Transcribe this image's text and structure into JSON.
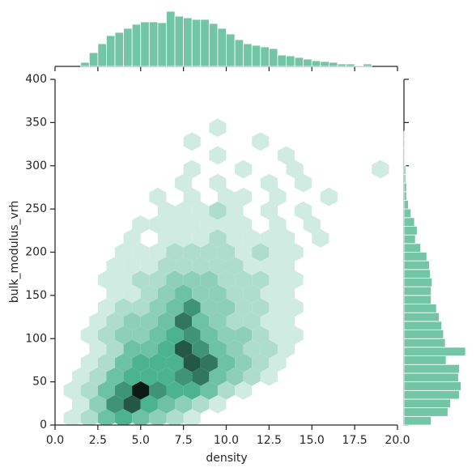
{
  "chart_data": {
    "type": "hexbin_joint",
    "x_label": "density",
    "y_label": "bulk_modulus_vrh",
    "xlim": [
      0,
      20
    ],
    "ylim": [
      0,
      400
    ],
    "xticks": [
      {
        "value": 0,
        "label": "0.0"
      },
      2.5,
      {
        "value": 5,
        "label": "5.0"
      },
      7.5,
      {
        "value": 10,
        "label": "10.0"
      },
      12.5,
      {
        "value": 15,
        "label": "15.0"
      },
      17.5,
      {
        "value": 20,
        "label": "20.0"
      }
    ],
    "yticks": [
      0,
      50,
      100,
      150,
      200,
      250,
      300,
      350,
      400
    ],
    "color": "#73c6a5",
    "cmap": [
      "#f1f9f5",
      "#4cb391",
      "#0a1a14"
    ],
    "hexbin": [
      {
        "y": 8,
        "x": [
          1,
          2,
          3,
          4,
          5,
          6,
          7,
          8
        ],
        "counts": [
          1,
          2,
          4,
          5,
          4,
          3,
          2,
          1
        ]
      },
      {
        "y": 24,
        "x": [
          1.5,
          2.5,
          3.5,
          4.5,
          5.5,
          6.5,
          7.5,
          8.5,
          9.5
        ],
        "counts": [
          1,
          3,
          6,
          8,
          5,
          4,
          3,
          2,
          1
        ]
      },
      {
        "y": 40,
        "x": [
          1,
          2,
          3,
          4,
          5,
          6,
          7,
          8,
          9,
          10,
          11
        ],
        "counts": [
          1,
          2,
          4,
          6,
          10,
          6,
          5,
          5,
          4,
          2,
          1
        ]
      },
      {
        "y": 56,
        "x": [
          1.5,
          2.5,
          3.5,
          4.5,
          5.5,
          6.5,
          7.5,
          8.5,
          9.5,
          10.5,
          11.5,
          12.5
        ],
        "counts": [
          1,
          2,
          4,
          5,
          5,
          5,
          6,
          7,
          4,
          3,
          2,
          1
        ]
      },
      {
        "y": 72,
        "x": [
          2,
          3,
          4,
          5,
          6,
          7,
          8,
          9,
          10,
          11,
          12,
          13
        ],
        "counts": [
          1,
          2,
          4,
          5,
          5,
          5,
          8,
          7,
          4,
          3,
          2,
          1
        ]
      },
      {
        "y": 88,
        "x": [
          2.5,
          3.5,
          4.5,
          5.5,
          6.5,
          7.5,
          8.5,
          9.5,
          10.5,
          11.5,
          12.5,
          13.5
        ],
        "counts": [
          1,
          2,
          4,
          4,
          5,
          8,
          6,
          4,
          3,
          2,
          2,
          1
        ]
      },
      {
        "y": 104,
        "x": [
          2,
          3,
          4,
          5,
          6,
          7,
          8,
          9,
          10,
          11,
          12,
          13,
          14
        ],
        "counts": [
          1,
          2,
          3,
          3,
          4,
          5,
          6,
          4,
          3,
          3,
          2,
          1,
          1
        ]
      },
      {
        "y": 120,
        "x": [
          2.5,
          3.5,
          4.5,
          5.5,
          6.5,
          7.5,
          8.5,
          9.5,
          10.5,
          11.5,
          12.5,
          13.5
        ],
        "counts": [
          1,
          2,
          3,
          3,
          4,
          7,
          4,
          3,
          2,
          2,
          1,
          1
        ]
      },
      {
        "y": 136,
        "x": [
          3,
          4,
          5,
          6,
          7,
          8,
          9,
          10,
          11,
          12,
          13,
          14
        ],
        "counts": [
          1,
          2,
          2,
          3,
          4,
          6,
          3,
          3,
          2,
          2,
          1,
          1
        ]
      },
      {
        "y": 152,
        "x": [
          3.5,
          4.5,
          5.5,
          6.5,
          7.5,
          8.5,
          9.5,
          10.5,
          11.5,
          12.5,
          13.5
        ],
        "counts": [
          1,
          1,
          2,
          3,
          4,
          3,
          3,
          2,
          2,
          1,
          1
        ]
      },
      {
        "y": 168,
        "x": [
          3,
          4,
          5,
          6,
          7,
          8,
          9,
          10,
          11,
          12,
          13,
          14
        ],
        "counts": [
          1,
          1,
          2,
          2,
          3,
          3,
          3,
          2,
          2,
          2,
          1,
          1
        ]
      },
      {
        "y": 184,
        "x": [
          3.5,
          4.5,
          5.5,
          6.5,
          7.5,
          8.5,
          9.5,
          10.5,
          11.5,
          12.5,
          13.5
        ],
        "counts": [
          1,
          1,
          1,
          2,
          2,
          2,
          2,
          2,
          1,
          1,
          1
        ]
      },
      {
        "y": 200,
        "x": [
          4,
          5,
          6,
          7,
          8,
          9,
          10,
          11,
          12,
          13,
          14
        ],
        "counts": [
          1,
          1,
          1,
          2,
          2,
          2,
          2,
          1,
          2,
          1,
          1
        ]
      },
      {
        "y": 216,
        "x": [
          4.5,
          6.5,
          7.5,
          8.5,
          9.5,
          10.5,
          11.5,
          12.5,
          13.5,
          15.5
        ],
        "counts": [
          1,
          1,
          1,
          1,
          2,
          1,
          1,
          1,
          1,
          1
        ]
      },
      {
        "y": 232,
        "x": [
          5,
          6,
          7,
          8,
          9,
          10,
          11,
          13,
          15
        ],
        "counts": [
          1,
          1,
          1,
          1,
          1,
          1,
          1,
          1,
          1
        ]
      },
      {
        "y": 248,
        "x": [
          6.5,
          7.5,
          8.5,
          9.5,
          10.5,
          12.5,
          14.5
        ],
        "counts": [
          1,
          1,
          1,
          2,
          1,
          1,
          1
        ]
      },
      {
        "y": 264,
        "x": [
          6,
          8,
          10,
          11,
          13,
          16
        ],
        "counts": [
          1,
          1,
          1,
          1,
          1,
          1
        ]
      },
      {
        "y": 280,
        "x": [
          7.5,
          9.5,
          12.5,
          14.5
        ],
        "counts": [
          1,
          1,
          1,
          1
        ]
      },
      {
        "y": 296,
        "x": [
          8,
          11,
          14,
          19
        ],
        "counts": [
          1,
          1,
          1,
          1
        ]
      },
      {
        "y": 312,
        "x": [
          9.5,
          13.5
        ],
        "counts": [
          1,
          1
        ]
      },
      {
        "y": 328,
        "x": [
          8,
          12
        ],
        "counts": [
          1,
          1
        ]
      },
      {
        "y": 344,
        "x": [
          9.5
        ],
        "counts": [
          1
        ]
      }
    ],
    "x_hist": {
      "bins": [
        1.5,
        2,
        2.5,
        3,
        3.5,
        4,
        4.5,
        5,
        5.5,
        6,
        6.5,
        7,
        7.5,
        8,
        8.5,
        9,
        9.5,
        10,
        10.5,
        11,
        11.5,
        12,
        12.5,
        13,
        13.5,
        14,
        14.5,
        15,
        15.5,
        16,
        16.5,
        17,
        17.5,
        18,
        18.5
      ],
      "counts": [
        5,
        17,
        28,
        38,
        42,
        47,
        52,
        55,
        55,
        54,
        68,
        62,
        60,
        58,
        58,
        53,
        47,
        40,
        33,
        28,
        26,
        24,
        22,
        14,
        13,
        11,
        9,
        7,
        6,
        5,
        3,
        3,
        1,
        3
      ]
    },
    "y_hist": {
      "bins": [
        0,
        10,
        20,
        30,
        40,
        50,
        60,
        70,
        80,
        90,
        100,
        110,
        120,
        130,
        140,
        150,
        160,
        170,
        180,
        190,
        200,
        210,
        220,
        230,
        240,
        250,
        260,
        270,
        280,
        290,
        300,
        310,
        320,
        330,
        340
      ],
      "counts": [
        31,
        50,
        53,
        63,
        65,
        62,
        63,
        48,
        70,
        47,
        45,
        43,
        40,
        37,
        31,
        31,
        32,
        30,
        29,
        26,
        19,
        13,
        15,
        12,
        8,
        5,
        3,
        3,
        2,
        2,
        1,
        1,
        1,
        1
      ]
    }
  }
}
